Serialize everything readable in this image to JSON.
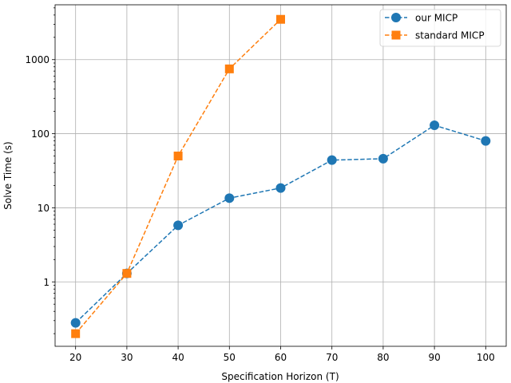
{
  "chart_data": {
    "type": "line",
    "title": "",
    "xlabel": "Specification Horizon (T)",
    "ylabel": "Solve Time (s)",
    "yscale": "log",
    "xlim": [
      16.0,
      104.0
    ],
    "ylim": [
      0.135,
      5500
    ],
    "xticks": [
      20,
      30,
      40,
      50,
      60,
      70,
      80,
      90,
      100
    ],
    "yticks": [
      {
        "value": 1,
        "label": "1"
      },
      {
        "value": 10,
        "label": "10"
      },
      {
        "value": 100,
        "label": "100"
      },
      {
        "value": 1000,
        "label": "1000"
      }
    ],
    "grid": true,
    "legend_position": "top-right",
    "series": [
      {
        "name": "our MICP",
        "color": "#1f77b4",
        "marker": "circle",
        "linestyle": "dashed",
        "x": [
          20,
          30,
          40,
          50,
          60,
          70,
          80,
          90,
          100
        ],
        "y": [
          0.28,
          1.3,
          5.8,
          13.5,
          18.5,
          44,
          46,
          130,
          80
        ]
      },
      {
        "name": "standard MICP",
        "color": "#ff7f0e",
        "marker": "square",
        "linestyle": "dashed",
        "x": [
          20,
          30,
          40,
          50,
          60
        ],
        "y": [
          0.2,
          1.3,
          50,
          750,
          3500
        ]
      }
    ]
  }
}
